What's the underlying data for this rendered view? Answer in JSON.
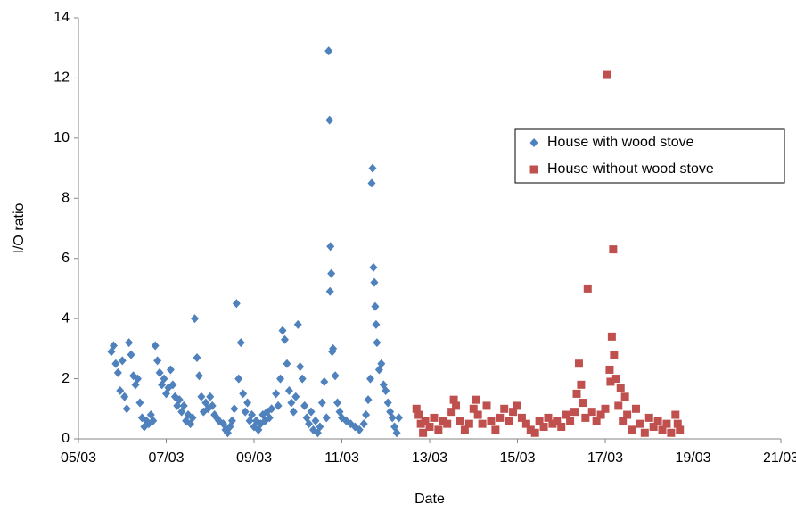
{
  "chart_data": {
    "type": "scatter",
    "x_label": "Date",
    "y_label": "I/O ratio",
    "xlim": [
      5,
      21
    ],
    "xticks": [
      {
        "value": 5,
        "label": "05/03"
      },
      {
        "value": 7,
        "label": "07/03"
      },
      {
        "value": 9,
        "label": "09/03"
      },
      {
        "value": 11,
        "label": "11/03"
      },
      {
        "value": 13,
        "label": "13/03"
      },
      {
        "value": 15,
        "label": "15/03"
      },
      {
        "value": 17,
        "label": "17/03"
      },
      {
        "value": 19,
        "label": "19/03"
      },
      {
        "value": 21,
        "label": "21/03"
      }
    ],
    "ylim": [
      0,
      14
    ],
    "yticks": [
      0,
      2,
      4,
      6,
      8,
      10,
      12,
      14
    ],
    "grid": false,
    "legend": "upper right",
    "series": [
      {
        "name": "House with wood stove",
        "color": "#4f81bd",
        "marker": "diamond",
        "x": [
          5.75,
          5.8,
          5.85,
          5.9,
          5.95,
          6.0,
          6.05,
          6.1,
          6.15,
          6.2,
          6.25,
          6.3,
          6.35,
          6.4,
          6.45,
          6.5,
          6.55,
          6.6,
          6.65,
          6.7,
          6.75,
          6.8,
          6.85,
          6.9,
          6.95,
          7.0,
          7.05,
          7.1,
          7.15,
          7.2,
          7.25,
          7.3,
          7.35,
          7.4,
          7.45,
          7.5,
          7.55,
          7.6,
          7.65,
          7.7,
          7.75,
          7.8,
          7.85,
          7.9,
          7.95,
          8.0,
          8.05,
          8.1,
          8.15,
          8.2,
          8.3,
          8.35,
          8.4,
          8.45,
          8.5,
          8.55,
          8.6,
          8.65,
          8.7,
          8.75,
          8.8,
          8.85,
          8.9,
          8.95,
          9.0,
          9.05,
          9.1,
          9.15,
          9.2,
          9.25,
          9.3,
          9.35,
          9.4,
          9.5,
          9.55,
          9.6,
          9.65,
          9.7,
          9.75,
          9.8,
          9.85,
          9.9,
          9.95,
          10.0,
          10.05,
          10.1,
          10.15,
          10.2,
          10.25,
          10.3,
          10.35,
          10.4,
          10.45,
          10.5,
          10.55,
          10.6,
          10.65,
          10.7,
          10.72,
          10.74,
          10.76,
          10.73,
          10.78,
          10.8,
          10.85,
          10.9,
          10.95,
          11.0,
          11.1,
          11.2,
          11.3,
          11.4,
          11.5,
          11.55,
          11.6,
          11.65,
          11.7,
          11.68,
          11.72,
          11.74,
          11.76,
          11.78,
          11.8,
          11.85,
          11.9,
          11.95,
          12.0,
          12.05,
          12.1,
          12.15,
          12.2,
          12.25,
          12.3
        ],
        "values": [
          2.9,
          3.1,
          2.5,
          2.2,
          1.6,
          2.6,
          1.4,
          1.0,
          3.2,
          2.8,
          2.1,
          1.8,
          2.0,
          1.2,
          0.7,
          0.4,
          0.6,
          0.5,
          0.8,
          0.6,
          3.1,
          2.6,
          2.2,
          1.8,
          2.0,
          1.5,
          1.7,
          2.3,
          1.8,
          1.4,
          1.1,
          1.3,
          0.9,
          1.1,
          0.6,
          0.8,
          0.5,
          0.7,
          4.0,
          2.7,
          2.1,
          1.4,
          0.9,
          1.2,
          1.0,
          1.4,
          1.1,
          0.8,
          0.7,
          0.6,
          0.5,
          0.3,
          0.2,
          0.4,
          0.6,
          1.0,
          4.5,
          2.0,
          3.2,
          1.5,
          0.9,
          1.2,
          0.6,
          0.8,
          0.4,
          0.6,
          0.3,
          0.5,
          0.8,
          0.6,
          0.9,
          0.7,
          1.0,
          1.5,
          1.1,
          2.0,
          3.6,
          3.3,
          2.5,
          1.6,
          1.2,
          0.9,
          1.4,
          3.8,
          2.4,
          2.0,
          1.1,
          0.7,
          0.5,
          0.9,
          0.3,
          0.6,
          0.2,
          0.4,
          1.2,
          1.9,
          0.7,
          12.9,
          10.6,
          6.4,
          5.5,
          4.9,
          2.9,
          3.0,
          2.1,
          1.2,
          0.9,
          0.7,
          0.6,
          0.5,
          0.4,
          0.3,
          0.5,
          0.8,
          1.3,
          2.0,
          9.0,
          8.5,
          5.7,
          5.2,
          4.4,
          3.8,
          3.2,
          2.3,
          2.5,
          1.8,
          1.6,
          1.2,
          0.9,
          0.7,
          0.4,
          0.2,
          0.7
        ]
      },
      {
        "name": "House without wood stove",
        "color": "#c0504d",
        "marker": "square",
        "x": [
          12.7,
          12.75,
          12.8,
          12.85,
          12.9,
          13.0,
          13.1,
          13.2,
          13.3,
          13.4,
          13.5,
          13.55,
          13.6,
          13.7,
          13.8,
          13.9,
          14.0,
          14.05,
          14.1,
          14.2,
          14.3,
          14.4,
          14.5,
          14.6,
          14.7,
          14.8,
          14.9,
          15.0,
          15.1,
          15.2,
          15.3,
          15.4,
          15.5,
          15.6,
          15.7,
          15.8,
          15.9,
          16.0,
          16.1,
          16.2,
          16.3,
          16.35,
          16.4,
          16.45,
          16.5,
          16.55,
          16.6,
          16.7,
          16.8,
          16.9,
          17.0,
          17.05,
          17.1,
          17.12,
          17.15,
          17.18,
          17.2,
          17.25,
          17.3,
          17.35,
          17.4,
          17.45,
          17.5,
          17.6,
          17.7,
          17.8,
          17.9,
          18.0,
          18.1,
          18.2,
          18.3,
          18.4,
          18.5,
          18.6,
          18.65,
          18.7
        ],
        "values": [
          1.0,
          0.8,
          0.5,
          0.2,
          0.6,
          0.4,
          0.7,
          0.3,
          0.6,
          0.5,
          0.9,
          1.3,
          1.1,
          0.6,
          0.3,
          0.5,
          1.0,
          1.3,
          0.8,
          0.5,
          1.1,
          0.6,
          0.3,
          0.7,
          1.0,
          0.6,
          0.9,
          1.1,
          0.7,
          0.5,
          0.3,
          0.2,
          0.6,
          0.4,
          0.7,
          0.5,
          0.6,
          0.4,
          0.8,
          0.6,
          0.9,
          1.5,
          2.5,
          1.8,
          1.2,
          0.7,
          5.0,
          0.9,
          0.6,
          0.8,
          1.0,
          12.1,
          2.3,
          1.9,
          3.4,
          6.3,
          2.8,
          2.0,
          1.1,
          1.7,
          0.6,
          1.4,
          0.8,
          0.3,
          1.0,
          0.5,
          0.2,
          0.7,
          0.4,
          0.6,
          0.3,
          0.5,
          0.2,
          0.8,
          0.5,
          0.3
        ]
      }
    ]
  }
}
